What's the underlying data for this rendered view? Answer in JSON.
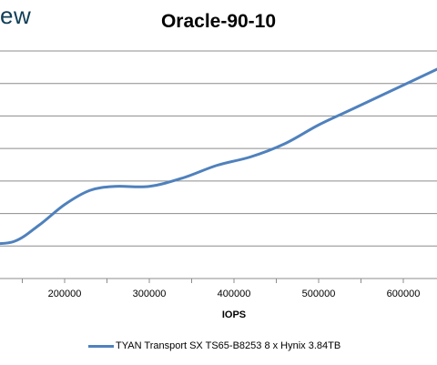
{
  "watermark": "ew",
  "chart_data": {
    "type": "line",
    "title": "Oracle-90-10",
    "xlabel": "IOPS",
    "ylabel": "",
    "x_tick_labels": [
      "200000",
      "300000",
      "400000",
      "500000",
      "600000"
    ],
    "x_ticks": [
      200000,
      300000,
      400000,
      500000,
      600000
    ],
    "grid": true,
    "legend_position": "bottom",
    "series": [
      {
        "name": "TYAN Transport SX TS65-B8253 8 x Hynix 3.84TB",
        "color": "#4f81bd",
        "points": [
          [
            105000,
            0.848
          ],
          [
            140000,
            0.8375
          ],
          [
            170000,
            0.765
          ],
          [
            200000,
            0.675
          ],
          [
            230000,
            0.6125
          ],
          [
            260000,
            0.595
          ],
          [
            300000,
            0.595
          ],
          [
            340000,
            0.5575
          ],
          [
            380000,
            0.5025
          ],
          [
            420000,
            0.465
          ],
          [
            460000,
            0.4075
          ],
          [
            500000,
            0.325
          ],
          [
            540000,
            0.255
          ],
          [
            580000,
            0.185
          ],
          [
            640000,
            0.08
          ]
        ]
      }
    ]
  }
}
